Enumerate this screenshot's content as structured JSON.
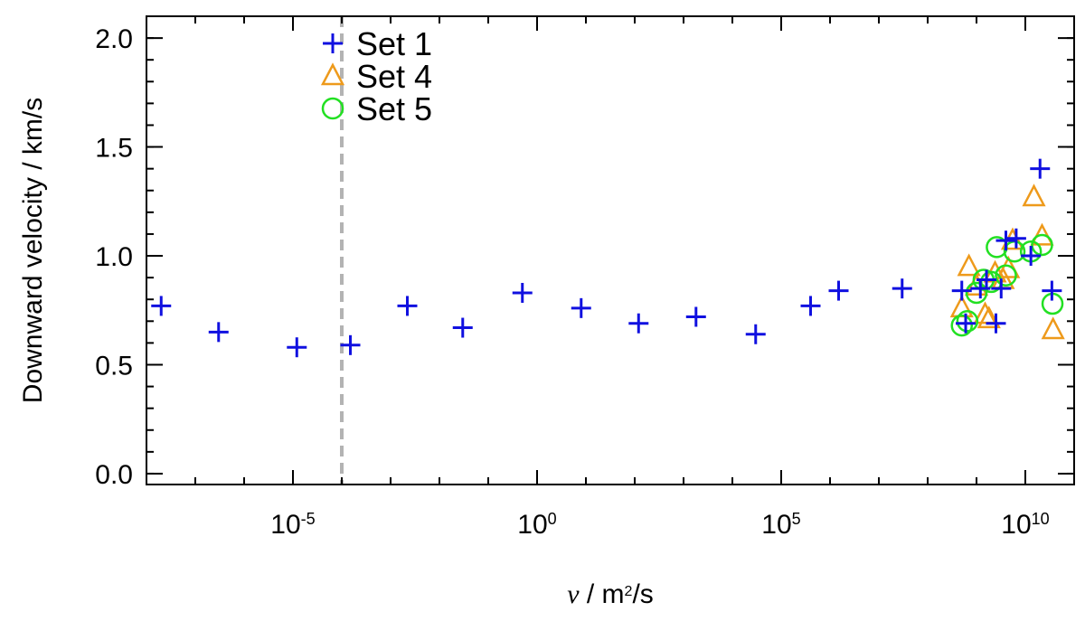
{
  "chart_data": {
    "type": "scatter",
    "title": "",
    "xlabel": {
      "symbol": "ν",
      "text": " / m",
      "sup": "2",
      "tail": "/s"
    },
    "ylabel": "Downward velocity / km/s",
    "xscale": "log",
    "xlim": [
      1e-08,
      100000000000.0
    ],
    "ylim": [
      -0.05,
      2.1
    ],
    "x_ticks": [
      {
        "value": 1e-05,
        "base": "10",
        "exp": "-5"
      },
      {
        "value": 1,
        "base": "10",
        "exp": "0"
      },
      {
        "value": 100000.0,
        "base": "10",
        "exp": "5"
      },
      {
        "value": 10000000000.0,
        "base": "10",
        "exp": "10"
      }
    ],
    "y_ticks": [
      {
        "value": 0.0,
        "label": "0.0"
      },
      {
        "value": 0.5,
        "label": "0.5"
      },
      {
        "value": 1.0,
        "label": "1.0"
      },
      {
        "value": 1.5,
        "label": "1.5"
      },
      {
        "value": 2.0,
        "label": "2.0"
      }
    ],
    "reference_line": {
      "x": 0.0001,
      "style": "dashed",
      "color": "#b3b3b3"
    },
    "legend_position": "top-left",
    "series": [
      {
        "name": "Set 1",
        "marker": "plus",
        "color": "#1010e0",
        "points": [
          {
            "x": 2e-08,
            "y": 0.77
          },
          {
            "x": 3e-07,
            "y": 0.65
          },
          {
            "x": 1.2e-05,
            "y": 0.58
          },
          {
            "x": 0.00015,
            "y": 0.59
          },
          {
            "x": 0.0022,
            "y": 0.77
          },
          {
            "x": 0.03,
            "y": 0.67
          },
          {
            "x": 0.5,
            "y": 0.83
          },
          {
            "x": 8,
            "y": 0.76
          },
          {
            "x": 120.0,
            "y": 0.69
          },
          {
            "x": 1800.0,
            "y": 0.72
          },
          {
            "x": 30000.0,
            "y": 0.64
          },
          {
            "x": 400000.0,
            "y": 0.77
          },
          {
            "x": 1500000.0,
            "y": 0.84
          },
          {
            "x": 30000000.0,
            "y": 0.85
          },
          {
            "x": 500000000.0,
            "y": 0.84
          },
          {
            "x": 600000000.0,
            "y": 0.69
          },
          {
            "x": 1200000000.0,
            "y": 0.85
          },
          {
            "x": 1600000000.0,
            "y": 0.89
          },
          {
            "x": 2500000000.0,
            "y": 0.69
          },
          {
            "x": 3200000000.0,
            "y": 0.85
          },
          {
            "x": 4000000000.0,
            "y": 1.07
          },
          {
            "x": 6500000000.0,
            "y": 1.08
          },
          {
            "x": 13000000000.0,
            "y": 1.0
          },
          {
            "x": 20000000000.0,
            "y": 1.4
          },
          {
            "x": 35000000000.0,
            "y": 0.84
          }
        ]
      },
      {
        "name": "Set 4",
        "marker": "triangle",
        "color": "#ee9a1b",
        "points": [
          {
            "x": 500000000.0,
            "y": 0.76
          },
          {
            "x": 700000000.0,
            "y": 0.95
          },
          {
            "x": 1000000000.0,
            "y": 0.86
          },
          {
            "x": 1500000000.0,
            "y": 0.73
          },
          {
            "x": 1800000000.0,
            "y": 0.71
          },
          {
            "x": 2400000000.0,
            "y": 0.92
          },
          {
            "x": 3500000000.0,
            "y": 0.89
          },
          {
            "x": 4500000000.0,
            "y": 0.94
          },
          {
            "x": 5500000000.0,
            "y": 1.07
          },
          {
            "x": 15000000000.0,
            "y": 1.27
          },
          {
            "x": 22000000000.0,
            "y": 1.09
          },
          {
            "x": 37000000000.0,
            "y": 0.66
          }
        ]
      },
      {
        "name": "Set 5",
        "marker": "circle",
        "color": "#22e022",
        "points": [
          {
            "x": 500000000.0,
            "y": 0.68
          },
          {
            "x": 650000000.0,
            "y": 0.7
          },
          {
            "x": 1000000000.0,
            "y": 0.83
          },
          {
            "x": 1400000000.0,
            "y": 0.89
          },
          {
            "x": 2000000000.0,
            "y": 0.88
          },
          {
            "x": 2600000000.0,
            "y": 1.04
          },
          {
            "x": 4000000000.0,
            "y": 0.91
          },
          {
            "x": 6000000000.0,
            "y": 1.02
          },
          {
            "x": 13000000000.0,
            "y": 1.02
          },
          {
            "x": 22000000000.0,
            "y": 1.05
          },
          {
            "x": 36000000000.0,
            "y": 0.78
          }
        ]
      }
    ]
  }
}
